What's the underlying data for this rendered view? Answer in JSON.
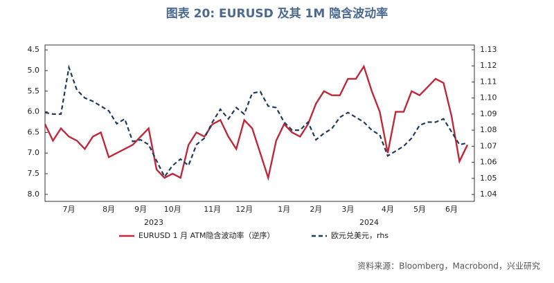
{
  "chart_data": {
    "type": "line",
    "title": "图表 20: EURUSD 及其 1M 隐含波动率",
    "source": "资料来源：Bloomberg，Macrobond，兴业研究",
    "year_labels": [
      "2023",
      "2024"
    ],
    "categories": [
      null,
      null,
      null,
      "7月",
      null,
      null,
      null,
      null,
      "8月",
      null,
      null,
      null,
      "9月",
      null,
      null,
      null,
      "10月",
      null,
      null,
      null,
      null,
      "11月",
      null,
      null,
      null,
      "12月",
      null,
      null,
      null,
      null,
      "1月",
      null,
      null,
      null,
      "2月",
      null,
      null,
      null,
      "3月",
      null,
      null,
      null,
      null,
      "4月",
      null,
      null,
      null,
      "5月",
      null,
      null,
      null,
      "6月",
      null,
      null
    ],
    "series": [
      {
        "name": "EURUSD 1 月 ATM隐含波动率（逆序）",
        "color": "#c0283a",
        "dash": false,
        "values": [
          6.3,
          6.7,
          6.4,
          6.6,
          6.7,
          6.9,
          6.6,
          6.5,
          7.1,
          7.0,
          6.9,
          6.8,
          6.6,
          6.4,
          7.4,
          7.6,
          7.5,
          7.6,
          6.8,
          6.5,
          6.6,
          6.3,
          6.2,
          6.6,
          6.9,
          6.2,
          6.4,
          7.0,
          7.6,
          6.7,
          6.3,
          6.5,
          6.6,
          6.3,
          5.8,
          5.5,
          5.6,
          5.6,
          5.2,
          5.2,
          4.9,
          5.5,
          6.0,
          7.0,
          6.0,
          6.0,
          5.5,
          5.6,
          5.4,
          5.2,
          5.3,
          6.1,
          7.2,
          6.8
        ]
      },
      {
        "name": "欧元兑美元，rhs",
        "color": "#1f3a5f",
        "dash": true,
        "axis": "y2",
        "values": [
          1.091,
          1.09,
          1.09,
          1.119,
          1.105,
          1.1,
          1.098,
          1.095,
          1.092,
          1.084,
          1.087,
          1.073,
          1.074,
          1.071,
          1.061,
          1.051,
          1.058,
          1.062,
          1.058,
          1.071,
          1.075,
          1.085,
          1.093,
          1.087,
          1.094,
          1.09,
          1.103,
          1.104,
          1.095,
          1.094,
          1.085,
          1.08,
          1.08,
          1.085,
          1.074,
          1.078,
          1.081,
          1.088,
          1.091,
          1.088,
          1.085,
          1.08,
          1.077,
          1.064,
          1.067,
          1.07,
          1.075,
          1.083,
          1.085,
          1.085,
          1.087,
          1.079,
          1.071,
          1.072
        ]
      }
    ],
    "ylim": [
      4.38,
      8.17
    ],
    "y_reversed": true,
    "yticks": [
      4.5,
      {
        "value": 5,
        "label": "5.0"
      },
      5.5,
      {
        "value": 6,
        "label": "6.0"
      },
      6.5,
      {
        "value": 7,
        "label": "7.0"
      },
      7.5,
      {
        "value": 8,
        "label": "8.0"
      }
    ],
    "y2lim": [
      1.0357,
      1.133
    ],
    "y2ticks": [
      1.04,
      1.05,
      1.06,
      1.07,
      1.08,
      1.09,
      {
        "value": 1.1,
        "label": "1.10"
      },
      1.11,
      1.12,
      1.13
    ],
    "grid": false
  }
}
